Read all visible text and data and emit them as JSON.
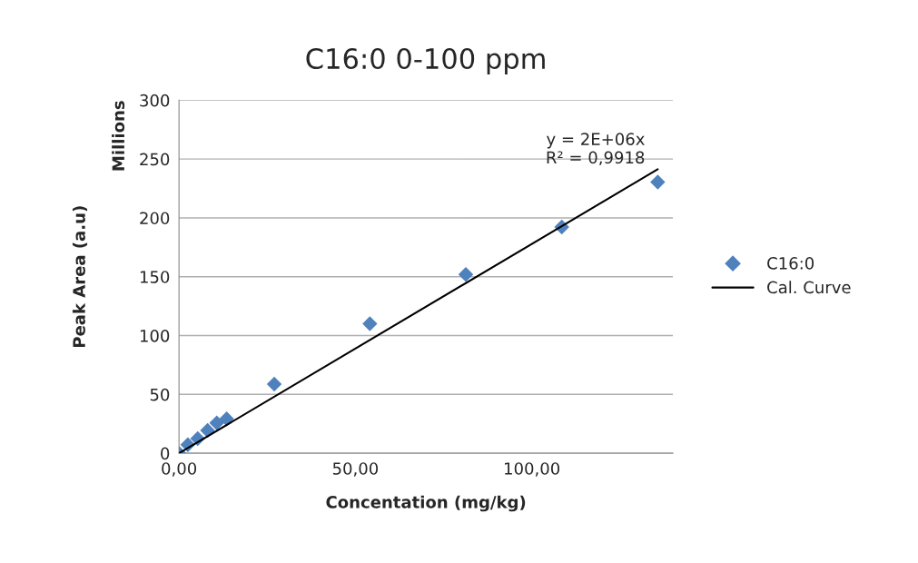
{
  "chart_data": {
    "type": "scatter",
    "title": "C16:0 0-100 ppm",
    "xlabel": "Concentation (mg/kg)",
    "ylabel": "Peak Area (a.u)",
    "annotations": [
      "Millions",
      {
        "text": "y = 2E+06x\nR² = 0,9918",
        "x": 135.7,
        "y": 241.3
      }
    ],
    "series": [
      {
        "name": "C16:0",
        "color": "#4f81bd",
        "marker": "diamond",
        "x": [
          0,
          2.5,
          5.3,
          8.1,
          10.7,
          13.5,
          27.0,
          54.1,
          81.3,
          108.5,
          135.7
        ],
        "values": [
          0,
          7.2,
          12.4,
          19.4,
          25.7,
          29.2,
          58.7,
          110,
          151.9,
          192.2,
          230.4
        ]
      },
      {
        "name": "Cal. Curve",
        "type": "line",
        "color": "#000000",
        "marker": "none",
        "x": [
          0,
          135.7
        ],
        "values": [
          0,
          241.3
        ]
      }
    ],
    "xlim": [
      0,
      140
    ],
    "xticks": [
      {
        "value": 0,
        "label": "0,00"
      },
      {
        "value": 50,
        "label": "50,00"
      },
      {
        "value": 100,
        "label": "100,00"
      }
    ],
    "ylim": [
      0,
      300
    ],
    "yticks": [
      0,
      50,
      100,
      150,
      200,
      250,
      300
    ],
    "grid": "y",
    "legend": "right"
  }
}
